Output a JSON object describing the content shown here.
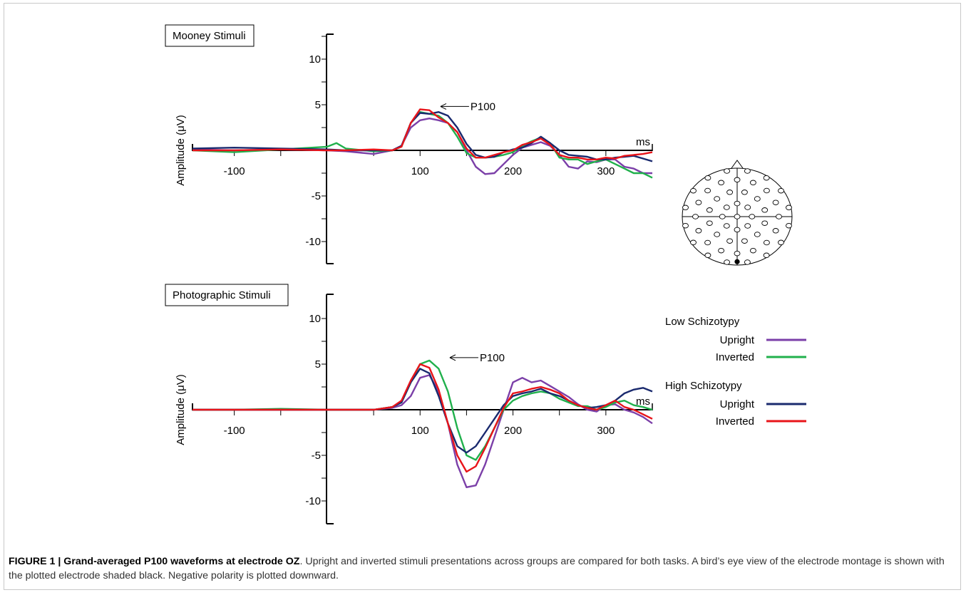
{
  "chart_data": [
    {
      "type": "line",
      "title": "Mooney Stimuli",
      "ylabel": "Amplitude (μV)",
      "xunit_label": "ms",
      "xlim": [
        -145,
        350
      ],
      "ylim": [
        -12,
        12
      ],
      "x_ticks": [
        -100,
        100,
        200,
        300
      ],
      "y_ticks": [
        10,
        5,
        -5,
        -10
      ],
      "annotation": "P100",
      "series": [
        {
          "name": "Upright",
          "group": "Low Schizotypy",
          "color": "#7b3fa8",
          "x": [
            -145,
            -100,
            -50,
            0,
            20,
            50,
            70,
            80,
            90,
            100,
            110,
            120,
            130,
            140,
            150,
            160,
            170,
            180,
            190,
            200,
            210,
            220,
            230,
            240,
            250,
            260,
            270,
            280,
            290,
            300,
            310,
            320,
            330,
            340,
            350
          ],
          "y": [
            0.1,
            0,
            0.1,
            0,
            -0.1,
            -0.4,
            0,
            0.5,
            2.5,
            3.3,
            3.5,
            3.3,
            3,
            2,
            0,
            -1.8,
            -2.6,
            -2.5,
            -1.5,
            -0.5,
            0.3,
            0.6,
            0.9,
            0.5,
            -0.5,
            -1.8,
            -2,
            -1.2,
            -1.3,
            -1,
            -1,
            -1.8,
            -2,
            -2.5,
            -2.5
          ]
        },
        {
          "name": "Inverted",
          "group": "Low Schizotypy",
          "color": "#20b04c",
          "x": [
            -145,
            -100,
            -50,
            0,
            10,
            20,
            50,
            70,
            80,
            90,
            100,
            110,
            120,
            130,
            140,
            150,
            160,
            170,
            180,
            190,
            200,
            210,
            220,
            230,
            240,
            250,
            260,
            270,
            280,
            290,
            300,
            310,
            320,
            330,
            340,
            350
          ],
          "y": [
            0,
            -0.2,
            0.1,
            0.4,
            0.8,
            0.2,
            -0.1,
            0,
            0.4,
            3,
            4.2,
            4,
            3.8,
            3,
            1.5,
            -0.3,
            -0.8,
            -0.8,
            -0.7,
            -0.5,
            -0.2,
            0.5,
            1,
            1.4,
            0.8,
            -0.8,
            -1,
            -1,
            -1.5,
            -1.2,
            -1,
            -1.5,
            -2,
            -2.5,
            -2.5,
            -3
          ]
        },
        {
          "name": "Upright",
          "group": "High Schizotypy",
          "color": "#1a2a6e",
          "x": [
            -145,
            -100,
            -50,
            0,
            20,
            50,
            70,
            80,
            90,
            100,
            110,
            120,
            130,
            140,
            150,
            160,
            170,
            180,
            190,
            200,
            210,
            220,
            230,
            240,
            250,
            260,
            270,
            280,
            290,
            300,
            310,
            320,
            330,
            340,
            350
          ],
          "y": [
            0.2,
            0.3,
            0.2,
            0.1,
            0,
            0,
            0,
            0.5,
            3,
            4.1,
            4,
            4.2,
            3.8,
            2.5,
            0.7,
            -0.5,
            -0.8,
            -0.7,
            -0.2,
            0.1,
            0.3,
            0.8,
            1.5,
            0.8,
            0,
            -0.5,
            -0.6,
            -0.7,
            -1,
            -1,
            -0.8,
            -0.7,
            -0.6,
            -0.9,
            -1.2
          ]
        },
        {
          "name": "Inverted",
          "group": "High Schizotypy",
          "color": "#e8141a",
          "x": [
            -145,
            -100,
            -50,
            0,
            20,
            50,
            70,
            80,
            90,
            100,
            110,
            120,
            130,
            140,
            150,
            160,
            170,
            180,
            190,
            200,
            210,
            220,
            230,
            240,
            250,
            260,
            270,
            280,
            290,
            300,
            310,
            320,
            330,
            340,
            350
          ],
          "y": [
            0,
            0,
            0.1,
            0,
            0,
            0.1,
            0,
            0.4,
            3,
            4.5,
            4.4,
            3.6,
            3,
            2,
            0.2,
            -0.8,
            -0.8,
            -0.5,
            -0.2,
            0,
            0.6,
            0.9,
            1.3,
            0.6,
            -0.5,
            -0.8,
            -0.8,
            -1,
            -1,
            -0.8,
            -0.9,
            -0.6,
            -0.5,
            -0.4,
            -0.2
          ]
        }
      ]
    },
    {
      "type": "line",
      "title": "Photographic Stimuli",
      "ylabel": "Amplitude (μV)",
      "xunit_label": "ms",
      "xlim": [
        -145,
        350
      ],
      "ylim": [
        -12,
        12
      ],
      "x_ticks": [
        -100,
        100,
        200,
        300
      ],
      "y_ticks": [
        10,
        5,
        -5,
        -10
      ],
      "annotation": "P100",
      "series": [
        {
          "name": "Upright",
          "group": "Low Schizotypy",
          "color": "#7b3fa8",
          "x": [
            -145,
            -100,
            -50,
            0,
            20,
            50,
            70,
            80,
            90,
            100,
            110,
            120,
            130,
            140,
            150,
            160,
            170,
            180,
            190,
            200,
            210,
            220,
            230,
            240,
            250,
            260,
            270,
            280,
            290,
            300,
            310,
            320,
            330,
            340,
            350
          ],
          "y": [
            0,
            0,
            0,
            0,
            0,
            0,
            0.2,
            0.5,
            1.5,
            3.5,
            3.8,
            2,
            -1.5,
            -6,
            -8.5,
            -8.3,
            -6,
            -3,
            0,
            3,
            3.5,
            3,
            3.2,
            2.6,
            2,
            1.4,
            0.6,
            0,
            -0.2,
            0.5,
            0.6,
            0,
            -0.3,
            -0.8,
            -1.5
          ]
        },
        {
          "name": "Inverted",
          "group": "Low Schizotypy",
          "color": "#20b04c",
          "x": [
            -145,
            -100,
            -50,
            0,
            20,
            50,
            70,
            80,
            90,
            100,
            110,
            120,
            130,
            140,
            150,
            160,
            170,
            180,
            190,
            200,
            210,
            220,
            230,
            240,
            250,
            260,
            270,
            280,
            290,
            300,
            310,
            320,
            330,
            340,
            350
          ],
          "y": [
            0,
            0,
            0.1,
            0,
            0,
            0,
            0.3,
            0.8,
            3,
            5,
            5.4,
            4.5,
            2,
            -2,
            -5,
            -5.5,
            -4,
            -2,
            0,
            1,
            1.5,
            1.8,
            2,
            1.8,
            1.2,
            0.8,
            0.4,
            0.4,
            0,
            0.3,
            0.8,
            1,
            0.5,
            0.3,
            0
          ]
        },
        {
          "name": "Upright",
          "group": "High Schizotypy",
          "color": "#1a2a6e",
          "x": [
            -145,
            -100,
            -50,
            0,
            20,
            50,
            70,
            80,
            90,
            100,
            110,
            120,
            130,
            140,
            150,
            160,
            170,
            180,
            190,
            200,
            210,
            220,
            230,
            240,
            250,
            260,
            270,
            280,
            290,
            300,
            310,
            320,
            330,
            340,
            350
          ],
          "y": [
            0,
            0,
            0,
            0,
            0,
            0,
            0.3,
            0.8,
            3,
            4.5,
            4,
            1.5,
            -1.5,
            -4,
            -4.7,
            -4,
            -2.5,
            -1,
            0.5,
            1.5,
            1.8,
            2,
            2.3,
            1.8,
            1.5,
            1,
            0.5,
            0.2,
            0.3,
            0.5,
            1,
            1.8,
            2.2,
            2.4,
            2
          ]
        },
        {
          "name": "Inverted",
          "group": "High Schizotypy",
          "color": "#e8141a",
          "x": [
            -145,
            -100,
            -50,
            0,
            20,
            50,
            70,
            80,
            90,
            100,
            110,
            120,
            130,
            140,
            150,
            160,
            170,
            180,
            190,
            200,
            210,
            220,
            230,
            240,
            250,
            260,
            270,
            280,
            290,
            300,
            310,
            320,
            330,
            340,
            350
          ],
          "y": [
            0,
            0,
            0,
            0,
            0,
            0,
            0.3,
            1,
            3.2,
            5,
            4.6,
            2.2,
            -1.5,
            -5,
            -6.8,
            -6.2,
            -4.2,
            -2,
            0.2,
            1.8,
            2,
            2.3,
            2.5,
            2.2,
            1.8,
            1,
            0.5,
            0.2,
            0,
            0.5,
            1,
            0.3,
            0,
            -0.5,
            -1
          ]
        }
      ]
    }
  ],
  "legend": {
    "groups": [
      {
        "label": "Low Schizotypy",
        "items": [
          {
            "label": "Upright",
            "color": "#7b3fa8"
          },
          {
            "label": "Inverted",
            "color": "#20b04c"
          }
        ]
      },
      {
        "label": "High Schizotypy",
        "items": [
          {
            "label": "Upright",
            "color": "#1a2a6e"
          },
          {
            "label": "Inverted",
            "color": "#e8141a"
          }
        ]
      }
    ]
  },
  "electrode_montage": {
    "highlighted_electrode": "OZ"
  },
  "caption": {
    "bold": "FIGURE 1 | Grand-averaged P100 waveforms at electrode OZ",
    "text": ". Upright and inverted stimuli presentations across groups are compared for both tasks. A bird’s eye view of the electrode montage is shown with the plotted electrode shaded black. Negative polarity is plotted downward."
  }
}
